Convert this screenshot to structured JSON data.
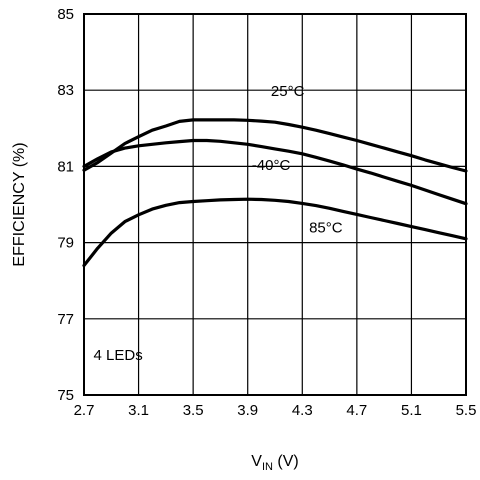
{
  "chart_data": {
    "type": "line",
    "xlabel_main": "V",
    "xlabel_sub": "IN",
    "xlabel_unit": " (V)",
    "ylabel": "EFFICIENCY (%)",
    "xlim": [
      2.7,
      5.5
    ],
    "ylim": [
      75,
      85
    ],
    "xticks": [
      2.7,
      3.1,
      3.5,
      3.9,
      4.3,
      4.7,
      5.1,
      5.5
    ],
    "xtick_labels": [
      "2.7",
      "3.1",
      "3.5",
      "3.9",
      "4.3",
      "4.7",
      "5.1",
      "5.5"
    ],
    "yticks": [
      75,
      77,
      79,
      81,
      83,
      85
    ],
    "ytick_labels": [
      "75",
      "77",
      "79",
      "81",
      "83",
      "85"
    ],
    "grid": true,
    "annotation": "4 LEDs",
    "series": [
      {
        "name": "25°C",
        "x": [
          2.7,
          2.8,
          2.9,
          3.0,
          3.1,
          3.2,
          3.3,
          3.4,
          3.5,
          3.6,
          3.7,
          3.8,
          3.9,
          4.0,
          4.1,
          4.2,
          4.3,
          4.4,
          4.5,
          4.6,
          4.7,
          4.8,
          4.9,
          5.0,
          5.1,
          5.2,
          5.3,
          5.4,
          5.5
        ],
        "y": [
          80.9,
          81.1,
          81.35,
          81.6,
          81.78,
          81.95,
          82.06,
          82.18,
          82.22,
          82.22,
          82.22,
          82.22,
          82.21,
          82.19,
          82.16,
          82.1,
          82.03,
          81.95,
          81.86,
          81.77,
          81.68,
          81.58,
          81.48,
          81.38,
          81.28,
          81.17,
          81.07,
          80.97,
          80.88
        ]
      },
      {
        "name": "-40°C",
        "x": [
          2.7,
          2.8,
          2.9,
          3.0,
          3.1,
          3.2,
          3.3,
          3.4,
          3.5,
          3.6,
          3.7,
          3.8,
          3.9,
          4.0,
          4.1,
          4.2,
          4.3,
          4.4,
          4.5,
          4.6,
          4.7,
          4.8,
          4.9,
          5.0,
          5.1,
          5.2,
          5.3,
          5.4,
          5.5
        ],
        "y": [
          81.0,
          81.2,
          81.38,
          81.48,
          81.54,
          81.58,
          81.62,
          81.65,
          81.68,
          81.68,
          81.66,
          81.62,
          81.58,
          81.52,
          81.46,
          81.4,
          81.33,
          81.24,
          81.14,
          81.04,
          80.93,
          80.83,
          80.72,
          80.61,
          80.5,
          80.38,
          80.26,
          80.14,
          80.02
        ]
      },
      {
        "name": "85°C",
        "x": [
          2.7,
          2.8,
          2.9,
          3.0,
          3.1,
          3.2,
          3.3,
          3.4,
          3.5,
          3.6,
          3.7,
          3.8,
          3.9,
          4.0,
          4.1,
          4.2,
          4.3,
          4.4,
          4.5,
          4.6,
          4.7,
          4.8,
          4.9,
          5.0,
          5.1,
          5.2,
          5.3,
          5.4,
          5.5
        ],
        "y": [
          78.4,
          78.85,
          79.25,
          79.55,
          79.73,
          79.88,
          79.98,
          80.05,
          80.08,
          80.1,
          80.12,
          80.13,
          80.14,
          80.13,
          80.11,
          80.08,
          80.03,
          79.97,
          79.9,
          79.82,
          79.74,
          79.66,
          79.58,
          79.5,
          79.42,
          79.34,
          79.26,
          79.18,
          79.1
        ]
      }
    ],
    "series_label_positions": [
      {
        "x": 4.07,
        "y": 82.85
      },
      {
        "x": 3.93,
        "y": 80.9
      },
      {
        "x": 4.35,
        "y": 79.27
      }
    ],
    "annotation_position": {
      "x": 2.77,
      "y": 75.92
    }
  }
}
